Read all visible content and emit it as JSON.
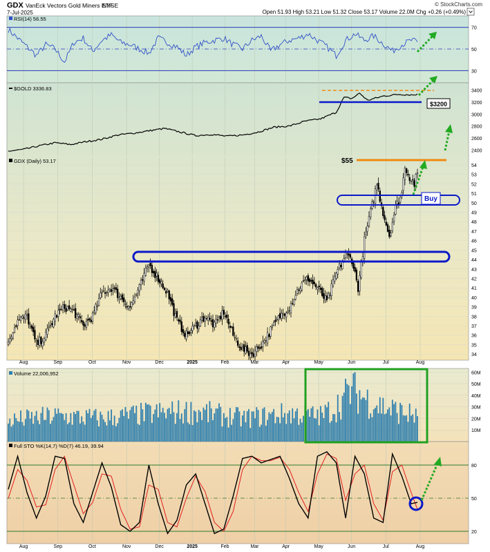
{
  "header": {
    "ticker": "GDX",
    "name": "VanEck Vectors Gold Miners ETF",
    "exchange": "NYSE",
    "date": "7-Jul-2025",
    "quote": "Open 51.93  High 53.21  Low 51.32  Close 53.17  Volume 22.0M  Chg +0.26 (+0.49%)",
    "brand": "© StockCharts.com"
  },
  "colors": {
    "candle": "#000000",
    "rsi_line": "#3050c8",
    "gold_line": "#000000",
    "volume_bar": "#2e7fae",
    "stoch_k": "#000000",
    "stoch_d": "#e02020",
    "annotation_blue": "#0a18c8",
    "annotation_orange": "#f08a10",
    "annotation_green": "#20a020",
    "arrow_green": "#22aa22"
  },
  "x_axis": {
    "months": [
      "Aug",
      "Sep",
      "Oct",
      "Nov",
      "Dec",
      "2025",
      "Feb",
      "Mar",
      "Apr",
      "May",
      "Jun",
      "Jul",
      "Aug"
    ]
  },
  "annotations": {
    "gold_support": "$3200",
    "gdx_resistance": "$55",
    "gdx_buy": "Buy"
  },
  "chart_data": [
    {
      "type": "line",
      "panel": "RSI",
      "title": "RSI(14) 56.55",
      "ylim": [
        20,
        80
      ],
      "y_ticks": [
        70,
        50,
        30
      ],
      "reference_lines": [
        70,
        50,
        30
      ],
      "anchors": [
        [
          0,
          68
        ],
        [
          6,
          60
        ],
        [
          12,
          52
        ],
        [
          18,
          44
        ],
        [
          24,
          54
        ],
        [
          30,
          50
        ],
        [
          36,
          38
        ],
        [
          42,
          56
        ],
        [
          48,
          60
        ],
        [
          54,
          48
        ],
        [
          60,
          58
        ],
        [
          66,
          63
        ],
        [
          72,
          56
        ],
        [
          78,
          54
        ],
        [
          84,
          50
        ],
        [
          90,
          46
        ],
        [
          96,
          60
        ],
        [
          102,
          56
        ],
        [
          108,
          52
        ],
        [
          114,
          44
        ],
        [
          120,
          52
        ],
        [
          126,
          56
        ],
        [
          132,
          58
        ],
        [
          138,
          60
        ],
        [
          144,
          54
        ],
        [
          150,
          50
        ],
        [
          156,
          58
        ],
        [
          162,
          62
        ],
        [
          168,
          48
        ],
        [
          174,
          54
        ],
        [
          180,
          58
        ],
        [
          186,
          60
        ],
        [
          192,
          64
        ],
        [
          198,
          58
        ],
        [
          204,
          52
        ],
        [
          210,
          44
        ],
        [
          216,
          58
        ],
        [
          222,
          64
        ],
        [
          228,
          58
        ],
        [
          234,
          62
        ],
        [
          240,
          55
        ],
        [
          246,
          48
        ],
        [
          252,
          54
        ],
        [
          258,
          58
        ],
        [
          262,
          56.55
        ]
      ]
    },
    {
      "type": "line",
      "panel": "GOLD",
      "title": "$GOLD 3336.83",
      "ylim": [
        2300,
        3500
      ],
      "y_ticks": [
        3400,
        3200,
        3000,
        2800,
        2600,
        2400
      ],
      "anchors": [
        [
          0,
          2380
        ],
        [
          10,
          2410
        ],
        [
          20,
          2470
        ],
        [
          30,
          2520
        ],
        [
          40,
          2490
        ],
        [
          50,
          2540
        ],
        [
          60,
          2580
        ],
        [
          70,
          2650
        ],
        [
          80,
          2680
        ],
        [
          90,
          2720
        ],
        [
          100,
          2760
        ],
        [
          110,
          2700
        ],
        [
          120,
          2640
        ],
        [
          130,
          2660
        ],
        [
          140,
          2630
        ],
        [
          150,
          2650
        ],
        [
          160,
          2700
        ],
        [
          170,
          2780
        ],
        [
          180,
          2800
        ],
        [
          190,
          2880
        ],
        [
          200,
          2920
        ],
        [
          210,
          3030
        ],
        [
          215,
          3280
        ],
        [
          220,
          3260
        ],
        [
          225,
          3350
        ],
        [
          230,
          3230
        ],
        [
          240,
          3300
        ],
        [
          250,
          3330
        ],
        [
          260,
          3320
        ],
        [
          262,
          3336.83
        ]
      ]
    },
    {
      "type": "candlestick",
      "panel": "GDX (Daily)",
      "title": "GDX (Daily) 53.17",
      "ylim": [
        33.5,
        54.8
      ],
      "y_ticks": [
        54,
        53,
        52,
        51,
        50,
        49,
        48,
        47,
        46,
        45,
        44,
        43,
        42,
        41,
        40,
        39,
        38,
        37,
        36,
        35,
        34
      ],
      "anchors": [
        [
          0,
          35.5
        ],
        [
          6,
          37.5
        ],
        [
          12,
          38
        ],
        [
          18,
          35
        ],
        [
          24,
          36
        ],
        [
          30,
          38
        ],
        [
          36,
          39
        ],
        [
          42,
          38.5
        ],
        [
          48,
          37
        ],
        [
          54,
          38
        ],
        [
          60,
          40.5
        ],
        [
          66,
          41
        ],
        [
          72,
          40
        ],
        [
          78,
          39
        ],
        [
          84,
          41
        ],
        [
          90,
          43.5
        ],
        [
          96,
          42
        ],
        [
          102,
          40.5
        ],
        [
          108,
          37.5
        ],
        [
          114,
          36
        ],
        [
          120,
          37
        ],
        [
          126,
          38
        ],
        [
          132,
          37
        ],
        [
          138,
          38.5
        ],
        [
          144,
          36
        ],
        [
          150,
          34.5
        ],
        [
          156,
          34
        ],
        [
          162,
          35
        ],
        [
          168,
          36.5
        ],
        [
          174,
          38
        ],
        [
          180,
          39
        ],
        [
          186,
          41
        ],
        [
          192,
          42
        ],
        [
          198,
          41
        ],
        [
          204,
          39.5
        ],
        [
          210,
          42.5
        ],
        [
          216,
          44.5
        ],
        [
          220,
          44
        ],
        [
          224,
          41
        ],
        [
          228,
          46
        ],
        [
          232,
          49
        ],
        [
          236,
          52
        ],
        [
          240,
          49
        ],
        [
          244,
          46.5
        ],
        [
          248,
          49.5
        ],
        [
          252,
          51
        ],
        [
          254,
          54
        ],
        [
          256,
          53
        ],
        [
          258,
          52.5
        ],
        [
          260,
          52
        ],
        [
          262,
          53.17
        ]
      ]
    },
    {
      "type": "bar",
      "panel": "Volume",
      "title": "Volume 22,006,952",
      "ylim": [
        0,
        62000000
      ],
      "y_ticks": [
        "60M",
        "50M",
        "40M",
        "30M",
        "20M",
        "10M"
      ],
      "y_tick_values": [
        60,
        50,
        40,
        30,
        20,
        10
      ],
      "y_unit": "M",
      "anchors": [
        [
          0,
          18
        ],
        [
          30,
          22
        ],
        [
          60,
          20
        ],
        [
          90,
          24
        ],
        [
          120,
          26
        ],
        [
          150,
          20
        ],
        [
          180,
          24
        ],
        [
          200,
          22
        ],
        [
          210,
          30
        ],
        [
          220,
          45
        ],
        [
          230,
          36
        ],
        [
          240,
          30
        ],
        [
          250,
          26
        ],
        [
          262,
          22
        ]
      ]
    },
    {
      "type": "line",
      "panel": "Full STO",
      "title": "Full STO %K(14,7) %D(7) 46.19, 39.94",
      "legend": [
        "%K(14,7) 46.19",
        "%D(7) 39.94"
      ],
      "ylim": [
        10,
        100
      ],
      "y_ticks": [
        80,
        50,
        20
      ],
      "reference_lines": [
        80,
        50,
        20
      ],
      "k_anchors": [
        [
          0,
          58
        ],
        [
          6,
          88
        ],
        [
          12,
          55
        ],
        [
          18,
          32
        ],
        [
          24,
          52
        ],
        [
          30,
          88
        ],
        [
          36,
          86
        ],
        [
          42,
          45
        ],
        [
          48,
          28
        ],
        [
          54,
          55
        ],
        [
          60,
          82
        ],
        [
          66,
          60
        ],
        [
          72,
          26
        ],
        [
          78,
          20
        ],
        [
          84,
          28
        ],
        [
          90,
          80
        ],
        [
          96,
          45
        ],
        [
          102,
          18
        ],
        [
          108,
          30
        ],
        [
          114,
          62
        ],
        [
          120,
          72
        ],
        [
          126,
          45
        ],
        [
          132,
          18
        ],
        [
          138,
          22
        ],
        [
          144,
          52
        ],
        [
          150,
          86
        ],
        [
          156,
          88
        ],
        [
          162,
          82
        ],
        [
          168,
          85
        ],
        [
          174,
          88
        ],
        [
          180,
          68
        ],
        [
          186,
          45
        ],
        [
          192,
          32
        ],
        [
          198,
          88
        ],
        [
          204,
          92
        ],
        [
          210,
          82
        ],
        [
          216,
          32
        ],
        [
          222,
          88
        ],
        [
          228,
          72
        ],
        [
          234,
          32
        ],
        [
          240,
          28
        ],
        [
          246,
          90
        ],
        [
          252,
          70
        ],
        [
          258,
          45
        ],
        [
          262,
          46.19
        ]
      ],
      "d_anchors": [
        [
          0,
          50
        ],
        [
          6,
          76
        ],
        [
          12,
          66
        ],
        [
          18,
          42
        ],
        [
          24,
          44
        ],
        [
          30,
          76
        ],
        [
          36,
          88
        ],
        [
          42,
          62
        ],
        [
          48,
          36
        ],
        [
          54,
          46
        ],
        [
          60,
          72
        ],
        [
          66,
          70
        ],
        [
          72,
          40
        ],
        [
          78,
          22
        ],
        [
          84,
          24
        ],
        [
          90,
          62
        ],
        [
          96,
          58
        ],
        [
          102,
          28
        ],
        [
          108,
          24
        ],
        [
          114,
          50
        ],
        [
          120,
          70
        ],
        [
          126,
          56
        ],
        [
          132,
          28
        ],
        [
          138,
          20
        ],
        [
          144,
          38
        ],
        [
          150,
          76
        ],
        [
          156,
          88
        ],
        [
          162,
          84
        ],
        [
          168,
          84
        ],
        [
          174,
          87
        ],
        [
          180,
          76
        ],
        [
          186,
          55
        ],
        [
          192,
          38
        ],
        [
          198,
          72
        ],
        [
          204,
          90
        ],
        [
          210,
          86
        ],
        [
          216,
          48
        ],
        [
          222,
          72
        ],
        [
          228,
          80
        ],
        [
          234,
          45
        ],
        [
          240,
          30
        ],
        [
          246,
          74
        ],
        [
          252,
          80
        ],
        [
          258,
          55
        ],
        [
          262,
          39.94
        ]
      ]
    }
  ]
}
